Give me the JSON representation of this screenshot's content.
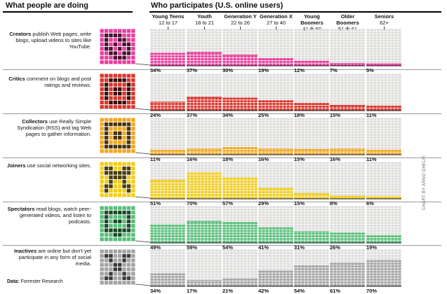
{
  "headers": {
    "left": "What people are doing",
    "right": "Who participates (U.S. online users)"
  },
  "groups": [
    {
      "name": "Young Teens",
      "ages": "12 to 17"
    },
    {
      "name": "Youth",
      "ages": "18 to 21"
    },
    {
      "name": "Generation Y",
      "ages": "22 to 26"
    },
    {
      "name": "Generation X",
      "ages": "27 to 40"
    },
    {
      "name": "Young Boomers",
      "ages": "41 to 50"
    },
    {
      "name": "Older Boomers",
      "ages": "51 to 61"
    },
    {
      "name": "Seniors",
      "ages": "62+"
    }
  ],
  "rows": [
    {
      "bold": "Creators",
      "text": " publish Web pages, write blogs, upload videos to sites like YouTube."
    },
    {
      "bold": "Critics",
      "text": " comment on blogs and post ratings and reviews."
    },
    {
      "bold": "Collectors",
      "text": " use Really Simple Syndication (RSS) and tag Web pages to gather information."
    },
    {
      "bold": "Joiners",
      "text": " use social networking sites."
    },
    {
      "bold": "Spectators",
      "text": " read blogs, watch peer-generated videos, and listen to podcasts."
    },
    {
      "bold": "Inactives",
      "text": " are online but don't yet participate in any form of social media."
    }
  ],
  "source_label": "Data:",
  "source": "Forrester Research",
  "credit": "CHART BY ARNO GHELFI",
  "colors": {
    "Creators": "#e83d9e",
    "Critics": "#d9352b",
    "Collectors": "#f2a71e",
    "Joiners": "#f2cc17",
    "Spectators": "#57bf79",
    "Inactives": "#a3a3a3",
    "empty": "#dddbd9"
  },
  "chart_data": {
    "type": "bar",
    "title": "Who participates (U.S. online users)",
    "categories": [
      "Young Teens",
      "Youth",
      "Generation Y",
      "Generation X",
      "Young Boomers",
      "Older Boomers",
      "Seniors"
    ],
    "ylim": [
      0,
      100
    ],
    "series": [
      {
        "name": "Creators",
        "values": [
          34,
          37,
          30,
          19,
          12,
          7,
          5
        ],
        "labels": [
          "34%",
          "37%",
          "30%",
          "19%",
          "12%",
          "7%",
          "5%"
        ]
      },
      {
        "name": "Critics",
        "values": [
          24,
          37,
          34,
          25,
          18,
          15,
          11
        ],
        "labels": [
          "24%",
          "37%",
          "34%",
          "25%",
          "18%",
          "15%",
          "11%"
        ]
      },
      {
        "name": "Collectors",
        "values": [
          11,
          16,
          18,
          16,
          15,
          16,
          11
        ],
        "labels": [
          "11%",
          "16%",
          "18%",
          "16%",
          "15%",
          "16%",
          "11%"
        ]
      },
      {
        "name": "Joiners",
        "values": [
          51,
          70,
          57,
          29,
          15,
          8,
          6
        ],
        "labels": [
          "51%",
          "70%",
          "57%",
          "29%",
          "15%",
          "8%",
          "6%"
        ]
      },
      {
        "name": "Spectators",
        "values": [
          49,
          59,
          54,
          41,
          31,
          26,
          19
        ],
        "labels": [
          "49%",
          "59%",
          "54%",
          "41%",
          "31%",
          "26%",
          "19%"
        ]
      },
      {
        "name": "Inactives",
        "values": [
          34,
          17,
          21,
          42,
          54,
          61,
          70
        ],
        "labels": [
          "34%",
          "17%",
          "21%",
          "42%",
          "54%",
          "61%",
          "70%"
        ]
      }
    ]
  }
}
